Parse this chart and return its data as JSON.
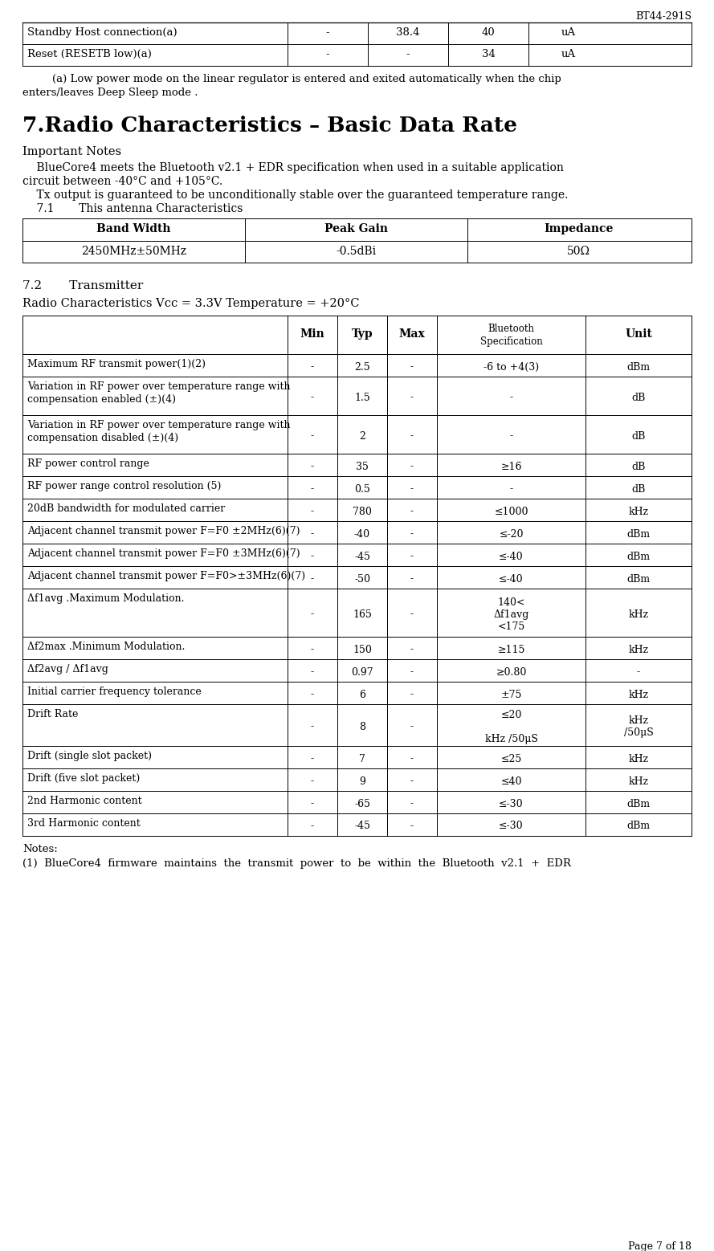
{
  "page_header": "BT44-291S",
  "page_footer": "Page 7 of 18",
  "top_table_rows": [
    [
      "Standby Host connection(a)",
      "-",
      "38.4",
      "40",
      "uA"
    ],
    [
      "Reset (RESETB low)(a)",
      "-",
      "-",
      "34",
      "uA"
    ]
  ],
  "footnote_line1": "    (a) Low power mode on the linear regulator is entered and exited automatically when the chip",
  "footnote_line2": "enters/leaves Deep Sleep mode .",
  "section_title": "7.Radio Characteristics – Basic Data Rate",
  "important_notes_title": "Important Notes",
  "note_line1": "    BlueCore4 meets the Bluetooth v2.1 + EDR specification when used in a suitable application",
  "note_line2": "circuit between -40°C and +105°C.",
  "note_line3": "    Tx output is guaranteed to be unconditionally stable over the guaranteed temperature range.",
  "note_line4": "    7.1       This antenna Characteristics",
  "ant_headers": [
    "Band Width",
    "Peak Gain",
    "Impedance"
  ],
  "ant_row": [
    "2450MHz±50MHz",
    "-0.5dBi",
    "50Ω"
  ],
  "transmitter_subtitle": "7.2       Transmitter",
  "radio_conditions": "Radio Characteristics Vcc = 3.3V Temperature = +20°C",
  "radio_headers": [
    "",
    "Min",
    "Typ",
    "Max",
    "Bluetooth\nSpecification",
    "Unit"
  ],
  "radio_rows": [
    [
      "Maximum RF transmit power(1)(2)",
      "-",
      "2.5",
      "-",
      "-6 to +4(3)",
      "dBm"
    ],
    [
      "Variation in RF power over temperature range with\ncompensation enabled (±)(4)",
      "-",
      "1.5",
      "-",
      "-",
      "dB"
    ],
    [
      "Variation in RF power over temperature range with\ncompensation disabled (±)(4)",
      "-",
      "2",
      "-",
      "-",
      "dB"
    ],
    [
      "RF power control range",
      "-",
      "35",
      "-",
      "≥16",
      "dB"
    ],
    [
      "RF power range control resolution (5)",
      "-",
      "0.5",
      "-",
      "-",
      "dB"
    ],
    [
      "20dB bandwidth for modulated carrier",
      "-",
      "780",
      "-",
      "≤1000",
      "kHz"
    ],
    [
      "Adjacent channel transmit power F=F0 ±2MHz(6)(7)",
      "-",
      "-40",
      "-",
      "≤-20",
      "dBm"
    ],
    [
      "Adjacent channel transmit power F=F0 ±3MHz(6)(7)",
      "-",
      "-45",
      "-",
      "≤-40",
      "dBm"
    ],
    [
      "Adjacent channel transmit power F=F0>±3MHz(6)(7)",
      "-",
      "-50",
      "-",
      "≤-40",
      "dBm"
    ],
    [
      "Δf1avg .Maximum Modulation.",
      "-",
      "165",
      "-",
      "140<\nΔf1avg\n<175",
      "kHz"
    ],
    [
      "Δf2max .Minimum Modulation.",
      "-",
      "150",
      "-",
      "≥115",
      "kHz"
    ],
    [
      "Δf2avg / Δf1avg",
      "-",
      "0.97",
      "-",
      "≥0.80",
      "-"
    ],
    [
      "Initial carrier frequency tolerance",
      "-",
      "6",
      "-",
      "±75",
      "kHz"
    ],
    [
      "Drift Rate",
      "-",
      "8",
      "-",
      "≤20\n\nkHz /50μS",
      "kHz\n/50μS"
    ],
    [
      "Drift (single slot packet)",
      "-",
      "7",
      "-",
      "≤25",
      "kHz"
    ],
    [
      "Drift (five slot packet)",
      "-",
      "9",
      "-",
      "≤40",
      "kHz"
    ],
    [
      "2nd Harmonic content",
      "-",
      "-65",
      "-",
      "≤-30",
      "dBm"
    ],
    [
      "3rd Harmonic content",
      "-",
      "-45",
      "-",
      "≤-30",
      "dBm"
    ]
  ],
  "notes_title": "Notes:",
  "notes_body": "(1)  BlueCore4  firmware  maintains  the  transmit  power  to  be  within  the  Bluetooth  v2.1  +  EDR"
}
